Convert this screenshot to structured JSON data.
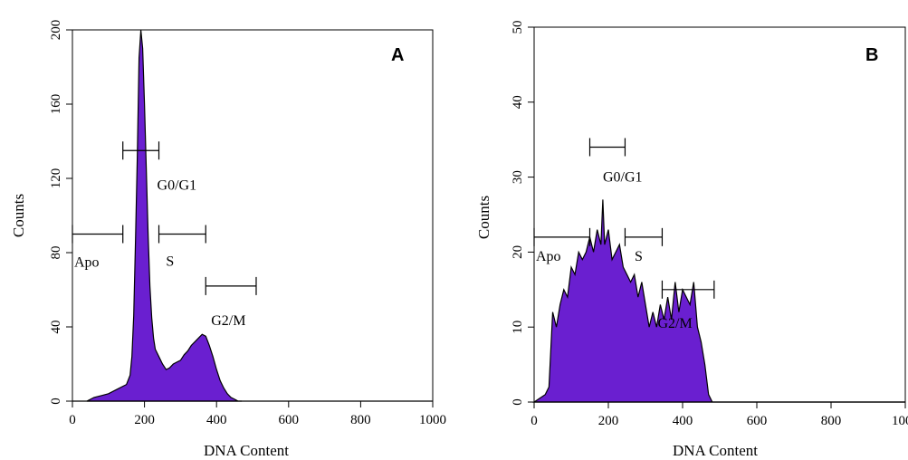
{
  "chart_data": [
    {
      "type": "area",
      "panel_label": "A",
      "xlabel": "DNA Content",
      "ylabel": "Counts",
      "xlim": [
        0,
        1000
      ],
      "ylim": [
        0,
        200
      ],
      "x_ticks": [
        "0",
        "200",
        "400",
        "600",
        "800",
        "1000"
      ],
      "y_ticks": [
        "0",
        "40",
        "80",
        "120",
        "160",
        "200"
      ],
      "fill_color": "#6a1fd0",
      "x": [
        40,
        60,
        80,
        100,
        120,
        140,
        150,
        160,
        165,
        170,
        175,
        180,
        185,
        190,
        195,
        200,
        205,
        210,
        215,
        220,
        225,
        230,
        240,
        250,
        260,
        270,
        280,
        290,
        300,
        310,
        320,
        330,
        340,
        350,
        360,
        370,
        380,
        390,
        400,
        410,
        420,
        430,
        440,
        450,
        460,
        470
      ],
      "values": [
        0,
        2,
        3,
        4,
        6,
        8,
        9,
        14,
        24,
        46,
        85,
        130,
        185,
        200,
        190,
        160,
        125,
        90,
        62,
        45,
        34,
        28,
        24,
        20,
        17,
        18,
        20,
        21,
        22,
        25,
        27,
        30,
        32,
        34,
        36,
        35,
        30,
        24,
        17,
        11,
        7,
        4,
        2,
        1,
        0,
        0
      ],
      "gates": [
        {
          "label": "Apo",
          "x_start": 0,
          "x_end": 140,
          "y": 90
        },
        {
          "label": "G0/G1",
          "x_start": 140,
          "x_end": 240,
          "y": 135
        },
        {
          "label": "S",
          "x_start": 240,
          "x_end": 370,
          "y": 90
        },
        {
          "label": "G2/M",
          "x_start": 370,
          "x_end": 510,
          "y": 62
        }
      ]
    },
    {
      "type": "area",
      "panel_label": "B",
      "xlabel": "DNA Content",
      "ylabel": "Counts",
      "xlim": [
        0,
        1000
      ],
      "ylim": [
        0,
        50
      ],
      "x_ticks": [
        "0",
        "200",
        "400",
        "600",
        "800",
        "1000"
      ],
      "y_ticks": [
        "0",
        "10",
        "20",
        "30",
        "40",
        "50"
      ],
      "fill_color": "#6a1fd0",
      "x": [
        0,
        30,
        40,
        50,
        60,
        70,
        80,
        90,
        100,
        110,
        120,
        130,
        140,
        150,
        160,
        170,
        180,
        185,
        190,
        200,
        210,
        220,
        230,
        240,
        250,
        260,
        270,
        280,
        290,
        300,
        310,
        320,
        330,
        340,
        350,
        360,
        370,
        380,
        390,
        400,
        410,
        420,
        430,
        440,
        450,
        460,
        470,
        480,
        800,
        1000
      ],
      "values": [
        0,
        1,
        2,
        12,
        10,
        13,
        15,
        14,
        18,
        17,
        20,
        19,
        20,
        22,
        20,
        23,
        21,
        27,
        21,
        23,
        19,
        20,
        21,
        18,
        17,
        16,
        17,
        14,
        16,
        13,
        10,
        12,
        10,
        13,
        11,
        14,
        11,
        16,
        12,
        15,
        14,
        13,
        16,
        10,
        8,
        5,
        1,
        0,
        0,
        0
      ],
      "gates": [
        {
          "label": "Apo",
          "x_start": 0,
          "x_end": 150,
          "y": 22
        },
        {
          "label": "G0/G1",
          "x_start": 150,
          "x_end": 245,
          "y": 34
        },
        {
          "label": "S",
          "x_start": 245,
          "x_end": 345,
          "y": 22
        },
        {
          "label": "G2/M",
          "x_start": 345,
          "x_end": 485,
          "y": 15
        }
      ]
    }
  ]
}
